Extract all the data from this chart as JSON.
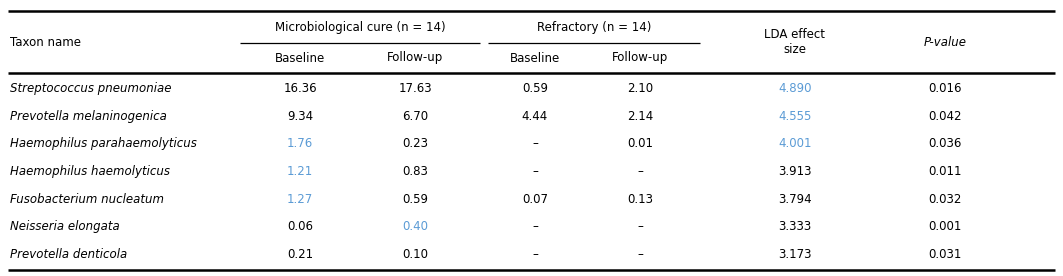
{
  "rows": [
    [
      "Streptococcus pneumoniae",
      "16.36",
      "17.63",
      "0.59",
      "2.10",
      "4.890",
      "0.016"
    ],
    [
      "Prevotella melaninogenica",
      "9.34",
      "6.70",
      "4.44",
      "2.14",
      "4.555",
      "0.042"
    ],
    [
      "Haemophilus parahaemolyticus",
      "1.76",
      "0.23",
      "–",
      "0.01",
      "4.001",
      "0.036"
    ],
    [
      "Haemophilus haemolyticus",
      "1.21",
      "0.83",
      "–",
      "–",
      "3.913",
      "0.011"
    ],
    [
      "Fusobacterium nucleatum",
      "1.27",
      "0.59",
      "0.07",
      "0.13",
      "3.794",
      "0.032"
    ],
    [
      "Neisseria elongata",
      "0.06",
      "0.40",
      "–",
      "–",
      "3.333",
      "0.001"
    ],
    [
      "Prevotella denticola",
      "0.21",
      "0.10",
      "–",
      "–",
      "3.173",
      "0.031"
    ]
  ],
  "row_colors": [
    [
      "#000000",
      "#000000",
      "#000000",
      "#000000",
      "#000000",
      "#5b9bd5",
      "#000000"
    ],
    [
      "#000000",
      "#000000",
      "#000000",
      "#000000",
      "#000000",
      "#5b9bd5",
      "#000000"
    ],
    [
      "#000000",
      "#5b9bd5",
      "#000000",
      "#000000",
      "#000000",
      "#5b9bd5",
      "#000000"
    ],
    [
      "#000000",
      "#5b9bd5",
      "#000000",
      "#000000",
      "#000000",
      "#000000",
      "#000000"
    ],
    [
      "#000000",
      "#5b9bd5",
      "#000000",
      "#000000",
      "#000000",
      "#000000",
      "#000000"
    ],
    [
      "#000000",
      "#000000",
      "#5b9bd5",
      "#000000",
      "#000000",
      "#000000",
      "#000000"
    ],
    [
      "#000000",
      "#000000",
      "#000000",
      "#000000",
      "#000000",
      "#000000",
      "#000000"
    ]
  ],
  "header_color": "#000000",
  "bg_color": "#ffffff",
  "line_color": "#000000",
  "group_cure_label": "Microbiological cure (n = 14)",
  "group_ref_label": "Refractory (n = 14)",
  "lda_label": "LDA effect\nsize",
  "pvalue_label": "P-value",
  "taxon_label": "Taxon name",
  "sub_labels": [
    "Baseline",
    "Follow-up",
    "Baseline",
    "Follow-up"
  ]
}
